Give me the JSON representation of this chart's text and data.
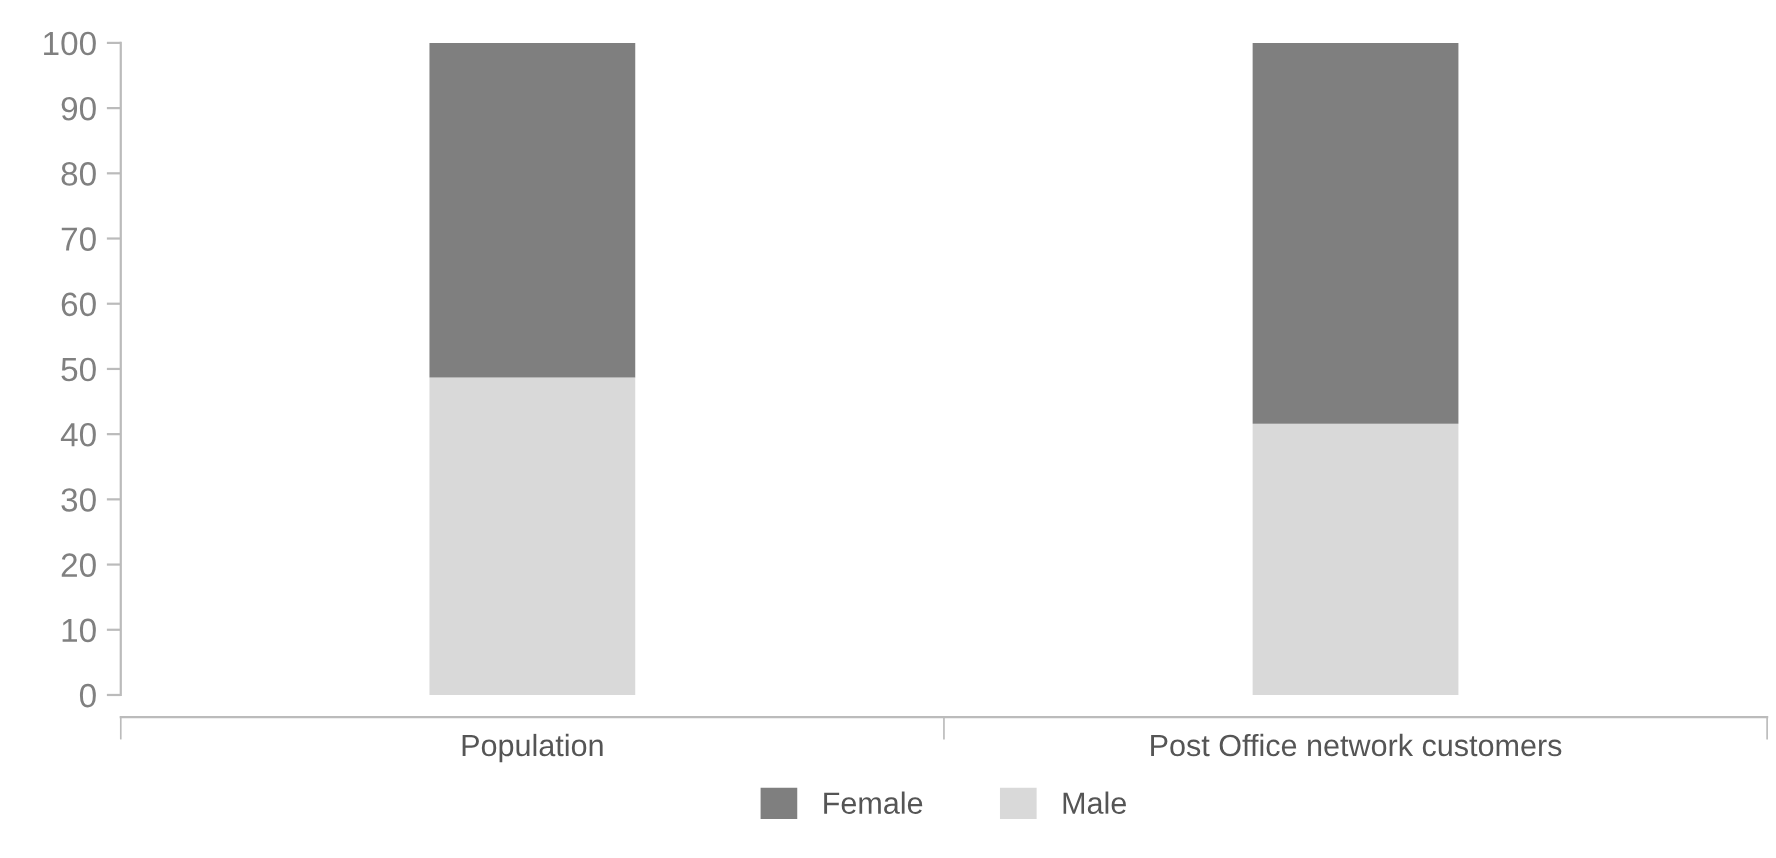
{
  "chart_data": {
    "type": "bar",
    "stacked": true,
    "categories": [
      "Population",
      "Post Office network customers"
    ],
    "series": [
      {
        "name": "Male",
        "color": "#d9d9d9",
        "values": [
          48.7,
          41.6
        ]
      },
      {
        "name": "Female",
        "color": "#7f7f7f",
        "values": [
          51.3,
          58.4
        ]
      }
    ],
    "ylim": [
      0,
      100
    ],
    "yticks": [
      0,
      10,
      20,
      30,
      40,
      50,
      60,
      70,
      80,
      90,
      100
    ],
    "grid": false,
    "legend": "bottom"
  }
}
